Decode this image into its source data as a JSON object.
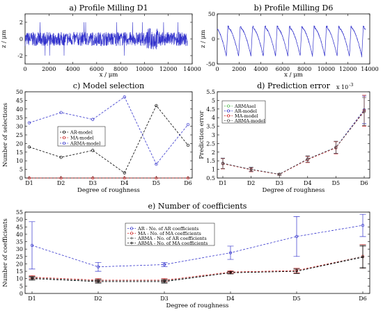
{
  "colors": {
    "blue": "#3333cc",
    "black": "#000000",
    "red": "#cc2222",
    "green": "#55bb55",
    "grey": "#555555"
  },
  "chart_data": [
    {
      "type": "line",
      "title": "a) Profile Milling D1",
      "xlabel": "x / μm",
      "ylabel": "z / μm",
      "xlim": [
        0,
        14000
      ],
      "ylim": [
        -3,
        3
      ],
      "xticks": [
        0,
        2000,
        4000,
        6000,
        8000,
        10000,
        12000,
        14000
      ],
      "yticks": [
        -2,
        0,
        2
      ],
      "x_end": 13600,
      "profile": {
        "kind": "random",
        "base_amplitude": 0.6,
        "peak_amplitude": 2.0
      }
    },
    {
      "type": "line",
      "title": "b) Profile Milling D6",
      "xlabel": "x / μm",
      "ylabel": "z / μm",
      "xlim": [
        0,
        14000
      ],
      "ylim": [
        -50,
        50
      ],
      "xticks": [
        0,
        2000,
        4000,
        6000,
        8000,
        10000,
        12000,
        14000
      ],
      "yticks": [
        -50,
        0,
        50
      ],
      "x_end": 13600,
      "profile": {
        "kind": "sawtooth",
        "period": 1130,
        "low": -36,
        "high": 25
      }
    },
    {
      "type": "line",
      "title": "c) Model selection",
      "xlabel": "Degree of roughness",
      "ylabel": "Number of selections",
      "categories": [
        "D1",
        "D2",
        "D3",
        "D4",
        "D5",
        "D6"
      ],
      "ylim": [
        0,
        50
      ],
      "yticks": [
        0,
        5,
        10,
        15,
        20,
        25,
        30,
        35,
        40,
        45,
        50
      ],
      "legend_position": "center-left",
      "series": [
        {
          "name": "AR-model",
          "color": "#000000",
          "values": [
            18,
            12,
            16,
            3,
            42,
            19
          ]
        },
        {
          "name": "MA-model",
          "color": "#cc2222",
          "values": [
            0,
            0,
            0,
            0,
            0,
            0
          ]
        },
        {
          "name": "ARMA-model",
          "color": "#3333cc",
          "values": [
            32,
            38,
            34,
            47,
            8,
            31
          ]
        }
      ]
    },
    {
      "type": "line",
      "title": "d) Prediction error",
      "xlabel": "Degree of roughness",
      "ylabel": "Prediction error",
      "scale_label": "x 10",
      "scale_exp": "-3",
      "categories": [
        "D1",
        "D2",
        "D3",
        "D4",
        "D5",
        "D6"
      ],
      "ylim": [
        0.5,
        5.5
      ],
      "yticks": [
        0.5,
        1,
        1.5,
        2,
        2.5,
        3,
        3.5,
        4,
        4.5,
        5,
        5.5
      ],
      "legend_position": "top-left",
      "series": [
        {
          "name": "ARMAsel",
          "color": "#55bb55",
          "values": [
            1.35,
            1.0,
            0.72,
            1.6,
            2.28,
            4.45
          ],
          "err": [
            0.3,
            0.12,
            0.05,
            0.18,
            0.35,
            0.8
          ]
        },
        {
          "name": "AR-model",
          "color": "#3333cc",
          "values": [
            1.35,
            1.0,
            0.72,
            1.6,
            2.28,
            4.45
          ],
          "err": [
            0.3,
            0.12,
            0.05,
            0.18,
            0.35,
            0.8
          ]
        },
        {
          "name": "MA-model",
          "color": "#cc2222",
          "values": [
            1.33,
            0.98,
            0.71,
            1.57,
            2.25,
            4.4
          ],
          "err": [
            0.3,
            0.12,
            0.05,
            0.18,
            0.35,
            0.9
          ]
        },
        {
          "name": "ARMA-model",
          "color": "#555555",
          "values": [
            1.35,
            1.0,
            0.72,
            1.6,
            2.28,
            4.35
          ],
          "err": [
            0.3,
            0.12,
            0.05,
            0.18,
            0.35,
            0.8
          ]
        }
      ]
    },
    {
      "type": "line",
      "title": "e) Number of coefficients",
      "xlabel": "Degree of roughness",
      "ylabel": "Number of coefficients",
      "categories": [
        "D1",
        "D2",
        "D3",
        "D4",
        "D5",
        "D6"
      ],
      "ylim": [
        0,
        55
      ],
      "yticks": [
        0,
        5,
        10,
        15,
        20,
        25,
        30,
        35,
        40,
        45,
        50,
        55
      ],
      "legend_position": "top-center",
      "series": [
        {
          "name": "AR - No. of AR coefficients",
          "color": "#3333cc",
          "values": [
            32.5,
            18,
            19.5,
            27.5,
            38.5,
            46
          ],
          "err": [
            16,
            3,
            1.3,
            4.5,
            13.5,
            7.5
          ]
        },
        {
          "name": "MA - No. of MA coefficients",
          "color": "#cc2222",
          "values": [
            11,
            9,
            9,
            14.5,
            15.5,
            25
          ],
          "err": [
            1,
            1,
            1,
            0.8,
            1.5,
            8
          ]
        },
        {
          "name": "ARMA - No. of AR coefficients",
          "color": "#555555",
          "values": [
            10.5,
            8.5,
            8.5,
            14,
            15,
            25
          ],
          "err": [
            1,
            1,
            1,
            0.8,
            1.5,
            7.5
          ]
        },
        {
          "name": "ARMA - No. of MA coefficients",
          "color": "#000000",
          "values": [
            10,
            8,
            8,
            14,
            15,
            24.5
          ],
          "err": [
            1,
            1,
            1,
            0.8,
            1.5,
            7.5
          ]
        }
      ]
    }
  ]
}
